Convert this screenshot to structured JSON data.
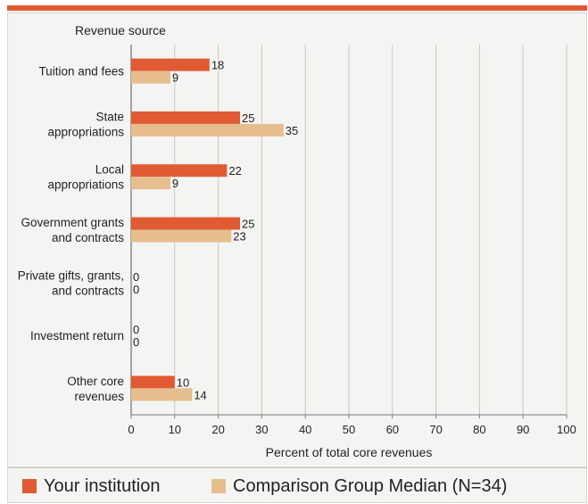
{
  "chart_data": {
    "type": "bar",
    "orientation": "horizontal",
    "title": "",
    "category_axis_label": "Revenue source",
    "xlabel": "Percent of total core revenues",
    "xlim": [
      0,
      100
    ],
    "xticks": [
      0,
      10,
      20,
      30,
      40,
      50,
      60,
      70,
      80,
      90,
      100
    ],
    "grid": true,
    "legend_position": "bottom",
    "categories": [
      [
        "Tuition and fees"
      ],
      [
        "State",
        "appropriations"
      ],
      [
        "Local",
        "appropriations"
      ],
      [
        "Government grants",
        "and contracts"
      ],
      [
        "Private gifts, grants,",
        "and contracts"
      ],
      [
        "Investment return"
      ],
      [
        "Other core",
        "revenues"
      ]
    ],
    "series": [
      {
        "name": "Your institution",
        "color": "#e05a33",
        "values": [
          18,
          25,
          22,
          25,
          0,
          0,
          10
        ]
      },
      {
        "name": "Comparison Group Median (N=34)",
        "color": "#e6bd8c",
        "values": [
          9,
          35,
          9,
          23,
          0,
          0,
          14
        ]
      }
    ]
  }
}
